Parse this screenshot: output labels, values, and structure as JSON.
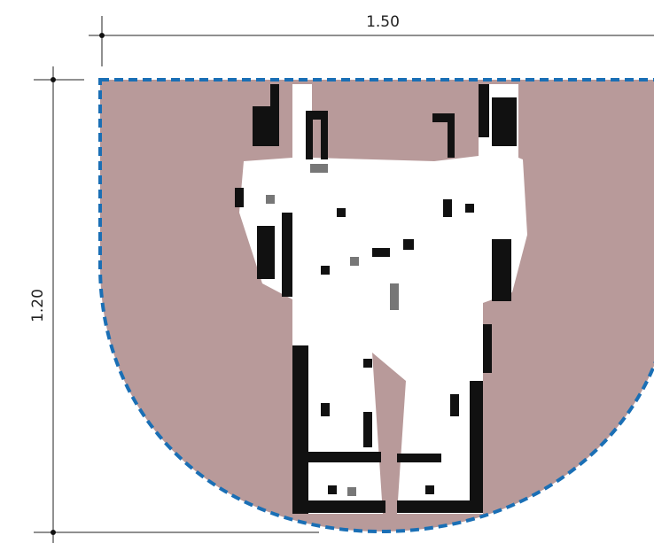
{
  "dimensions": {
    "width_label": "1.50",
    "height_label": "1.20"
  }
}
